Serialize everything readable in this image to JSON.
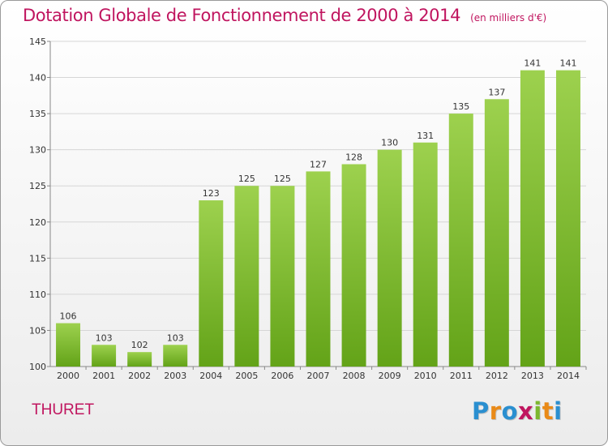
{
  "chart_data": {
    "type": "bar",
    "title": "Dotation Globale de Fonctionnement de 2000 à 2014",
    "subtitle": "(en milliers d'€)",
    "categories": [
      "2000",
      "2001",
      "2002",
      "2003",
      "2004",
      "2005",
      "2006",
      "2007",
      "2008",
      "2009",
      "2010",
      "2011",
      "2012",
      "2013",
      "2014"
    ],
    "values": [
      106,
      103,
      102,
      103,
      123,
      125,
      125,
      127,
      128,
      130,
      131,
      135,
      137,
      141,
      141
    ],
    "xlabel": "",
    "ylabel": "",
    "ylim": [
      100,
      145
    ],
    "yticks": [
      100,
      105,
      110,
      115,
      120,
      125,
      130,
      135,
      140,
      145
    ],
    "grid": true,
    "bar_color": "#7fbd32"
  },
  "commune": "THURET",
  "logo": {
    "letters": [
      "P",
      "r",
      "o",
      "x",
      "i",
      "t",
      "i"
    ],
    "colors": [
      "#2a8fd0",
      "#e98a18",
      "#2a8fd0",
      "#c0155f",
      "#7cb82f",
      "#e98a18",
      "#2a8fd0"
    ]
  }
}
